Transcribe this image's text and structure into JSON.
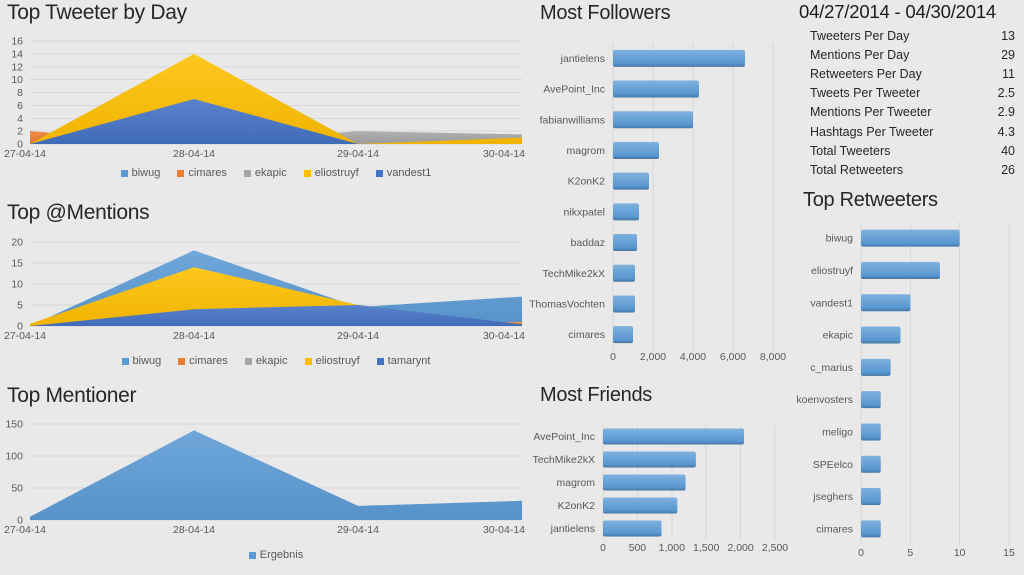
{
  "theme": {
    "background": "#e9e9e9",
    "grid": "#d8d8d8",
    "axis_text": "#595959",
    "title_text": "#272727",
    "accent_blue": "#5B9BD5"
  },
  "stats": {
    "title": "04/27/2014 - 04/30/2014",
    "rows": [
      {
        "label": "Tweeters Per Day",
        "value": "13"
      },
      {
        "label": "Mentions Per Day",
        "value": "29"
      },
      {
        "label": "Retweeters Per Day",
        "value": "11"
      },
      {
        "label": "Tweets Per Tweeter",
        "value": "2.5"
      },
      {
        "label": "Mentions Per Tweeter",
        "value": "2.9"
      },
      {
        "label": "Hashtags Per Tweeter",
        "value": "4.3"
      },
      {
        "label": "Total Tweeters",
        "value": "40"
      },
      {
        "label": "Total Retweeters",
        "value": "26"
      }
    ]
  },
  "chart_data": [
    {
      "id": "top-tweeter-by-day",
      "type": "area",
      "title": "Top Tweeter by Day",
      "categories": [
        "27-04-14",
        "28-04-14",
        "29-04-14",
        "30-04-14"
      ],
      "series": [
        {
          "name": "biwug",
          "color": "#5B9BD5",
          "values": [
            0,
            5,
            0,
            0
          ]
        },
        {
          "name": "cimares",
          "color": "#ED7D31",
          "values": [
            2,
            0,
            0,
            0
          ]
        },
        {
          "name": "ekapic",
          "color": "#A5A5A5",
          "values": [
            0,
            0,
            2,
            1.5
          ]
        },
        {
          "name": "eliostruyf",
          "color": "#FFC000",
          "values": [
            0,
            14,
            0,
            1
          ]
        },
        {
          "name": "vandest1",
          "color": "#4472C4",
          "values": [
            0,
            7,
            0,
            0
          ]
        }
      ],
      "ylim": [
        0,
        16
      ],
      "yticks": [
        0,
        2,
        4,
        6,
        8,
        10,
        12,
        14,
        16
      ],
      "grid": "horizontal",
      "legend_position": "bottom"
    },
    {
      "id": "top-mentions",
      "type": "area",
      "title": "Top @Mentions",
      "categories": [
        "27-04-14",
        "28-04-14",
        "29-04-14",
        "30-04-14"
      ],
      "series": [
        {
          "name": "biwug",
          "color": "#5B9BD5",
          "values": [
            0,
            18,
            4.5,
            7
          ]
        },
        {
          "name": "cimares",
          "color": "#ED7D31",
          "values": [
            0,
            0,
            0,
            1
          ]
        },
        {
          "name": "ekapic",
          "color": "#A5A5A5",
          "values": [
            0,
            0,
            0,
            0
          ]
        },
        {
          "name": "eliostruyf",
          "color": "#FFC000",
          "values": [
            0.5,
            14,
            5,
            0
          ]
        },
        {
          "name": "tamarynt",
          "color": "#4472C4",
          "values": [
            0,
            4,
            5,
            0.4
          ]
        }
      ],
      "ylim": [
        0,
        20
      ],
      "yticks": [
        0,
        5,
        10,
        15,
        20
      ],
      "grid": "horizontal",
      "legend_position": "bottom"
    },
    {
      "id": "top-mentioner",
      "type": "area",
      "title": "Top Mentioner",
      "categories": [
        "27-04-14",
        "28-04-14",
        "29-04-14",
        "30-04-14"
      ],
      "series": [
        {
          "name": "Ergebnis",
          "color": "#5B9BD5",
          "values": [
            5,
            140,
            22,
            30
          ]
        }
      ],
      "ylim": [
        0,
        150
      ],
      "yticks": [
        0,
        50,
        100,
        150
      ],
      "grid": "horizontal",
      "legend_position": "bottom"
    },
    {
      "id": "most-followers",
      "type": "barh",
      "title": "Most Followers",
      "categories": [
        "jantielens",
        "AvePoint_Inc",
        "fabianwilliams",
        "magrom",
        "K2onK2",
        "nikxpatel",
        "baddaz",
        "TechMike2kX",
        "ThomasVochten",
        "cimares"
      ],
      "values": [
        6600,
        4300,
        4000,
        2300,
        1800,
        1300,
        1200,
        1100,
        1100,
        1000
      ],
      "bar_color": "#5B9BD5",
      "xlim": [
        0,
        8000
      ],
      "xticks": [
        0,
        2000,
        4000,
        6000,
        8000
      ],
      "xtick_labels": [
        "0",
        "2,000",
        "4,000",
        "6,000",
        "8,000"
      ],
      "grid": "vertical"
    },
    {
      "id": "most-friends",
      "type": "barh",
      "title": "Most Friends",
      "categories": [
        "AvePoint_Inc",
        "TechMike2kX",
        "magrom",
        "K2onK2",
        "jantielens"
      ],
      "values": [
        2050,
        1350,
        1200,
        1080,
        850
      ],
      "bar_color": "#5B9BD5",
      "xlim": [
        0,
        2500
      ],
      "xticks": [
        0,
        500,
        1000,
        1500,
        2000,
        2500
      ],
      "xtick_labels": [
        "0",
        "500",
        "1,000",
        "1,500",
        "2,000",
        "2,500"
      ],
      "grid": "vertical"
    },
    {
      "id": "top-retweeters",
      "type": "barh",
      "title": "Top Retweeters",
      "categories": [
        "biwug",
        "eliostruyf",
        "vandest1",
        "ekapic",
        "c_marius",
        "koenvosters",
        "meligo",
        "SPEelco",
        "jseghers",
        "cimares"
      ],
      "values": [
        10,
        8,
        5,
        4,
        3,
        2,
        2,
        2,
        2,
        2
      ],
      "bar_color": "#5B9BD5",
      "xlim": [
        0,
        15
      ],
      "xticks": [
        0,
        5,
        10,
        15
      ],
      "xtick_labels": [
        "0",
        "5",
        "10",
        "15"
      ],
      "grid": "vertical"
    }
  ]
}
